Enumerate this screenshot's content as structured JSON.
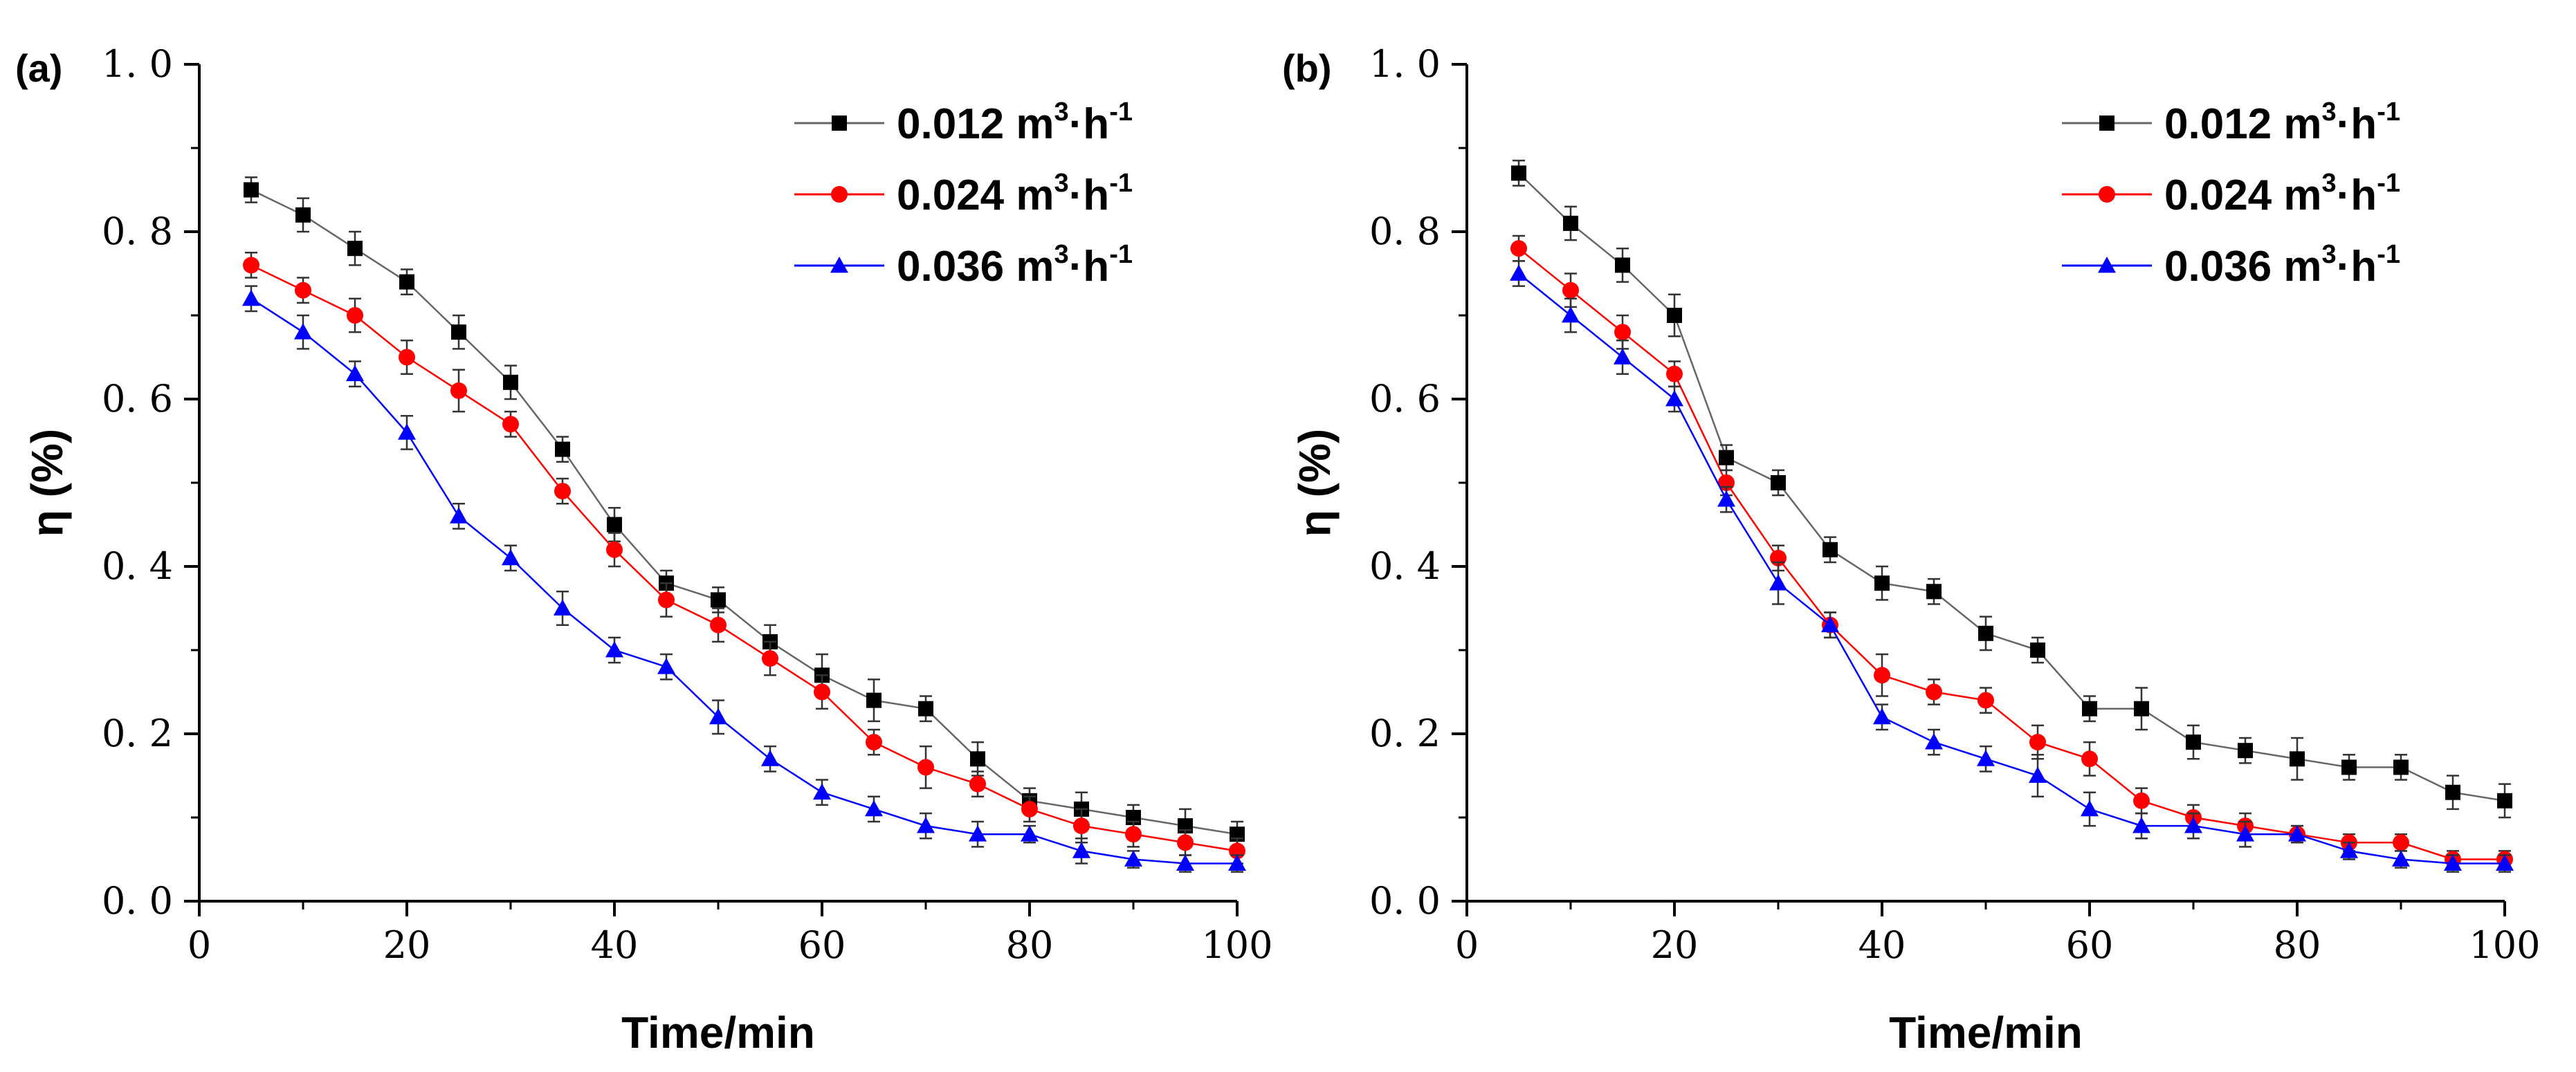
{
  "chart_data": [
    {
      "type": "line",
      "panel_label": "(a)",
      "xlabel": "Time/min",
      "ylabel": "η (%)",
      "xlim": [
        0,
        100
      ],
      "ylim": [
        0.0,
        1.0
      ],
      "xticks": [
        0,
        20,
        40,
        60,
        80,
        100
      ],
      "xtick_labels": [
        "0",
        "20",
        "40",
        "60",
        "80",
        "100"
      ],
      "yticks": [
        0.0,
        0.2,
        0.4,
        0.6,
        0.8,
        1.0
      ],
      "ytick_labels": [
        "0. 0",
        "0. 2",
        "0. 4",
        "0. 6",
        "0. 8",
        "1. 0"
      ],
      "grid": false,
      "legend_position": "top-right",
      "x": [
        5,
        10,
        15,
        20,
        25,
        30,
        35,
        40,
        45,
        50,
        55,
        60,
        65,
        70,
        75,
        80,
        85,
        90,
        95,
        100
      ],
      "series": [
        {
          "name": "0.012 m³·h⁻¹",
          "legend_base": "0.012 m",
          "legend_sup1": "3",
          "legend_mid": "·h",
          "legend_sup2": "-1",
          "marker": "square",
          "color": "#000000",
          "line_color": "#666666",
          "values": [
            0.85,
            0.82,
            0.78,
            0.74,
            0.68,
            0.62,
            0.54,
            0.45,
            0.38,
            0.36,
            0.31,
            0.27,
            0.24,
            0.23,
            0.17,
            0.12,
            0.11,
            0.1,
            0.09,
            0.08
          ],
          "errors": [
            0.015,
            0.02,
            0.02,
            0.015,
            0.02,
            0.02,
            0.015,
            0.02,
            0.015,
            0.015,
            0.02,
            0.025,
            0.025,
            0.015,
            0.02,
            0.015,
            0.02,
            0.015,
            0.02,
            0.015
          ]
        },
        {
          "name": "0.024 m³·h⁻¹",
          "legend_base": "0.024 m",
          "legend_sup1": "3",
          "legend_mid": "·h",
          "legend_sup2": "-1",
          "marker": "circle",
          "color": "#ff0000",
          "line_color": "#ff0000",
          "values": [
            0.76,
            0.73,
            0.7,
            0.65,
            0.61,
            0.57,
            0.49,
            0.42,
            0.36,
            0.33,
            0.29,
            0.25,
            0.19,
            0.16,
            0.14,
            0.11,
            0.09,
            0.08,
            0.07,
            0.06
          ],
          "errors": [
            0.015,
            0.015,
            0.02,
            0.02,
            0.025,
            0.015,
            0.015,
            0.02,
            0.02,
            0.02,
            0.02,
            0.02,
            0.015,
            0.025,
            0.015,
            0.015,
            0.02,
            0.015,
            0.015,
            0.015
          ]
        },
        {
          "name": "0.036 m³·h⁻¹",
          "legend_base": "0.036 m",
          "legend_sup1": "3",
          "legend_mid": "·h",
          "legend_sup2": "-1",
          "marker": "triangle",
          "color": "#0000ff",
          "line_color": "#0000ff",
          "values": [
            0.72,
            0.68,
            0.63,
            0.56,
            0.46,
            0.41,
            0.35,
            0.3,
            0.28,
            0.22,
            0.17,
            0.13,
            0.11,
            0.09,
            0.08,
            0.08,
            0.06,
            0.05,
            0.045,
            0.045
          ],
          "errors": [
            0.015,
            0.02,
            0.015,
            0.02,
            0.015,
            0.015,
            0.02,
            0.015,
            0.015,
            0.02,
            0.015,
            0.015,
            0.015,
            0.015,
            0.015,
            0.01,
            0.015,
            0.01,
            0.01,
            0.01
          ]
        }
      ]
    },
    {
      "type": "line",
      "panel_label": "(b)",
      "xlabel": "Time/min",
      "ylabel": "η (%)",
      "xlim": [
        0,
        100
      ],
      "ylim": [
        0.0,
        1.0
      ],
      "xticks": [
        0,
        20,
        40,
        60,
        80,
        100
      ],
      "xtick_labels": [
        "0",
        "20",
        "40",
        "60",
        "80",
        "100"
      ],
      "yticks": [
        0.0,
        0.2,
        0.4,
        0.6,
        0.8,
        1.0
      ],
      "ytick_labels": [
        "0. 0",
        "0. 2",
        "0. 4",
        "0. 6",
        "0. 8",
        "1. 0"
      ],
      "grid": false,
      "legend_position": "top-right",
      "x": [
        5,
        10,
        15,
        20,
        25,
        30,
        35,
        40,
        45,
        50,
        55,
        60,
        65,
        70,
        75,
        80,
        85,
        90,
        95,
        100
      ],
      "series": [
        {
          "name": "0.012 m³·h⁻¹",
          "legend_base": "0.012 m",
          "legend_sup1": "3",
          "legend_mid": "·h",
          "legend_sup2": "-1",
          "marker": "square",
          "color": "#000000",
          "line_color": "#666666",
          "values": [
            0.87,
            0.81,
            0.76,
            0.7,
            0.53,
            0.5,
            0.42,
            0.38,
            0.37,
            0.32,
            0.3,
            0.23,
            0.23,
            0.19,
            0.18,
            0.17,
            0.16,
            0.16,
            0.13,
            0.12
          ],
          "errors": [
            0.015,
            0.02,
            0.02,
            0.025,
            0.015,
            0.015,
            0.015,
            0.02,
            0.015,
            0.02,
            0.015,
            0.015,
            0.025,
            0.02,
            0.015,
            0.025,
            0.015,
            0.015,
            0.02,
            0.02
          ]
        },
        {
          "name": "0.024 m³·h⁻¹",
          "legend_base": "0.024 m",
          "legend_sup1": "3",
          "legend_mid": "·h",
          "legend_sup2": "-1",
          "marker": "circle",
          "color": "#ff0000",
          "line_color": "#ff0000",
          "values": [
            0.78,
            0.73,
            0.68,
            0.63,
            0.5,
            0.41,
            0.33,
            0.27,
            0.25,
            0.24,
            0.19,
            0.17,
            0.12,
            0.1,
            0.09,
            0.08,
            0.07,
            0.07,
            0.05,
            0.05
          ],
          "errors": [
            0.015,
            0.02,
            0.02,
            0.015,
            0.015,
            0.015,
            0.015,
            0.025,
            0.015,
            0.015,
            0.02,
            0.02,
            0.015,
            0.015,
            0.015,
            0.01,
            0.01,
            0.01,
            0.01,
            0.01
          ]
        },
        {
          "name": "0.036 m³·h⁻¹",
          "legend_base": "0.036 m",
          "legend_sup1": "3",
          "legend_mid": "·h",
          "legend_sup2": "-1",
          "marker": "triangle",
          "color": "#0000ff",
          "line_color": "#0000ff",
          "values": [
            0.75,
            0.7,
            0.65,
            0.6,
            0.48,
            0.38,
            0.33,
            0.22,
            0.19,
            0.17,
            0.15,
            0.11,
            0.09,
            0.09,
            0.08,
            0.08,
            0.06,
            0.05,
            0.045,
            0.045
          ],
          "errors": [
            0.015,
            0.02,
            0.02,
            0.015,
            0.015,
            0.025,
            0.015,
            0.015,
            0.015,
            0.015,
            0.025,
            0.02,
            0.015,
            0.015,
            0.015,
            0.01,
            0.01,
            0.01,
            0.01,
            0.01
          ]
        }
      ]
    }
  ]
}
